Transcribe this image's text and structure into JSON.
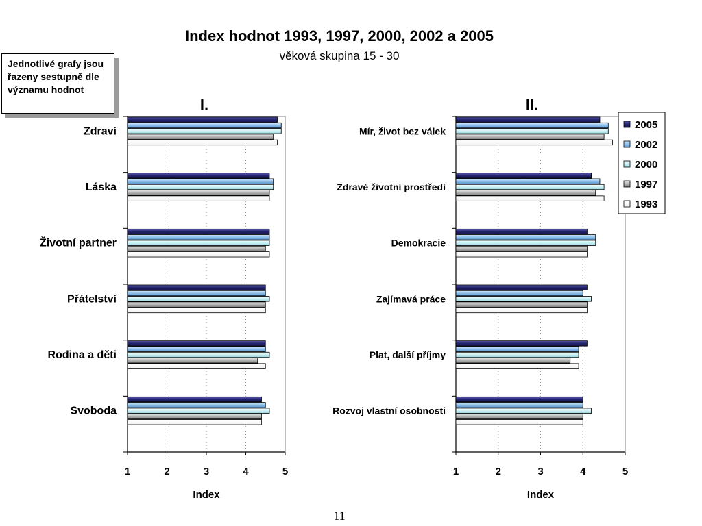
{
  "page": {
    "title": "Index hodnot 1993, 1997, 2000, 2002 a 2005",
    "subtitle": "věková skupina 15 - 30",
    "note": "Jednotlivé grafy jsou řazeny sestupně dle významu hodnot",
    "page_number": "11"
  },
  "colors": {
    "2005": "#24246e",
    "2002": "#8ebfea",
    "2000": "#ccf0f4",
    "1997": "#b4b4b4",
    "1993": "#ffffff"
  },
  "chart_data": [
    {
      "type": "bar",
      "orientation": "horizontal",
      "title": "I.",
      "xlabel": "Index",
      "xlim": [
        1,
        5
      ],
      "xticks": [
        1,
        2,
        3,
        4,
        5
      ],
      "grid": "vertical dotted",
      "categories": [
        "Zdraví",
        "Láska",
        "Životní partner",
        "Přátelství",
        "Rodina a děti",
        "Svoboda"
      ],
      "series": [
        {
          "name": "2005",
          "values": [
            4.8,
            4.6,
            4.6,
            4.5,
            4.5,
            4.4
          ]
        },
        {
          "name": "2002",
          "values": [
            4.9,
            4.7,
            4.6,
            4.5,
            4.5,
            4.5
          ]
        },
        {
          "name": "2000",
          "values": [
            4.9,
            4.7,
            4.6,
            4.6,
            4.6,
            4.6
          ]
        },
        {
          "name": "1997",
          "values": [
            4.7,
            4.6,
            4.5,
            4.5,
            4.3,
            4.4
          ]
        },
        {
          "name": "1993",
          "values": [
            4.8,
            4.6,
            4.6,
            4.5,
            4.5,
            4.4
          ]
        }
      ]
    },
    {
      "type": "bar",
      "orientation": "horizontal",
      "title": "II.",
      "xlabel": "Index",
      "xlim": [
        1,
        5
      ],
      "xticks": [
        1,
        2,
        3,
        4,
        5
      ],
      "grid": "vertical dotted",
      "legend": "top-right",
      "categories": [
        "Mír, život bez válek",
        "Zdravé životní prostředí",
        "Demokracie",
        "Zajímavá práce",
        "Plat, další příjmy",
        "Rozvoj vlastní osobnosti"
      ],
      "series": [
        {
          "name": "2005",
          "values": [
            4.4,
            4.2,
            4.1,
            4.1,
            4.1,
            4.0
          ]
        },
        {
          "name": "2002",
          "values": [
            4.6,
            4.4,
            4.3,
            4.0,
            3.9,
            4.0
          ]
        },
        {
          "name": "2000",
          "values": [
            4.6,
            4.5,
            4.3,
            4.2,
            3.9,
            4.2
          ]
        },
        {
          "name": "1997",
          "values": [
            4.5,
            4.3,
            4.1,
            4.1,
            3.7,
            4.0
          ]
        },
        {
          "name": "1993",
          "values": [
            4.7,
            4.5,
            4.1,
            4.1,
            3.9,
            4.0
          ]
        }
      ]
    }
  ]
}
